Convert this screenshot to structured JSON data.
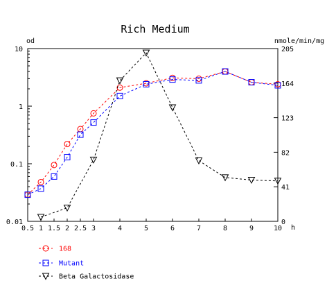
{
  "chart_data": {
    "type": "line",
    "title": "Rich Medium",
    "xlabel": "h",
    "ylabel": "od",
    "y2label": "nmole/min/mg",
    "y_scale": "log",
    "xlim": [
      0.5,
      10
    ],
    "ylim": [
      0.01,
      10
    ],
    "y2lim": [
      0,
      205
    ],
    "x_ticks": [
      "0.5",
      "1",
      "1.5",
      "2",
      "2.5",
      "3",
      "4",
      "5",
      "6",
      "7",
      "8",
      "9",
      "10"
    ],
    "y_ticks": [
      "0.01",
      "0.1",
      "1",
      "10"
    ],
    "y2_ticks": [
      "0",
      "41",
      "82",
      "123",
      "164",
      "205"
    ],
    "grid": false,
    "legend_position": "bottom-left",
    "series": [
      {
        "name": "168",
        "axis": "left",
        "color": "#ff0000",
        "marker": "circle",
        "x": [
          0.5,
          1,
          1.5,
          2,
          2.5,
          3,
          4,
          5,
          6,
          7,
          8,
          9,
          10
        ],
        "y": [
          0.029,
          0.048,
          0.095,
          0.22,
          0.4,
          0.75,
          2.1,
          2.5,
          3.1,
          3.0,
          4.0,
          2.6,
          2.4
        ]
      },
      {
        "name": "Mutant",
        "axis": "left",
        "color": "#0000ff",
        "marker": "square",
        "x": [
          0.5,
          1,
          1.5,
          2,
          2.5,
          3,
          4,
          5,
          6,
          7,
          8,
          9,
          10
        ],
        "y": [
          0.029,
          0.037,
          0.06,
          0.13,
          0.32,
          0.52,
          1.5,
          2.4,
          2.9,
          2.8,
          4.0,
          2.6,
          2.3
        ]
      },
      {
        "name": "Beta Galactosidase",
        "axis": "right",
        "color": "#000000",
        "marker": "triangle-down",
        "x": [
          1,
          2,
          3,
          4,
          5,
          6,
          7,
          8,
          9,
          10
        ],
        "y": [
          5,
          16,
          73,
          167,
          200,
          135,
          72,
          52,
          49,
          48
        ]
      }
    ]
  }
}
